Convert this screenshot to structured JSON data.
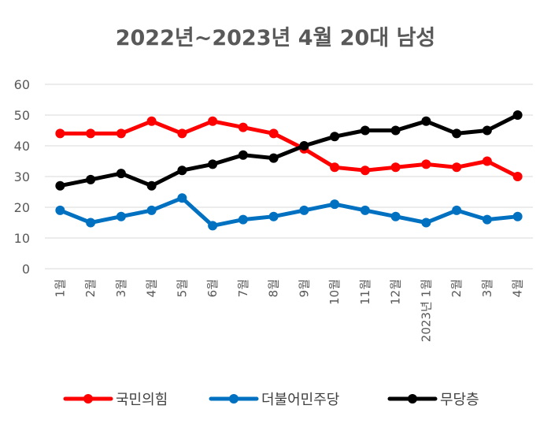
{
  "chart_data": {
    "type": "line",
    "title": "2022년~2023년 4월 20대 남성",
    "xlabel": "",
    "ylabel": "",
    "categories": [
      "1월",
      "2월",
      "3월",
      "4월",
      "5월",
      "6월",
      "7월",
      "8월",
      "9월",
      "10월",
      "11월",
      "12월",
      "2023년 1월",
      "2월",
      "3월",
      "4월"
    ],
    "ylim": [
      0,
      60
    ],
    "yticks": [
      0,
      10,
      20,
      30,
      40,
      50,
      60
    ],
    "grid": true,
    "legend": "bottom",
    "series": [
      {
        "name": "국민의힘",
        "color": "#ff0000",
        "values": [
          44,
          44,
          44,
          48,
          44,
          48,
          46,
          44,
          39,
          33,
          32,
          33,
          34,
          33,
          35,
          30
        ]
      },
      {
        "name": "더불어민주당",
        "color": "#0070c0",
        "values": [
          19,
          15,
          17,
          19,
          23,
          14,
          16,
          17,
          19,
          21,
          19,
          17,
          15,
          19,
          16,
          17
        ]
      },
      {
        "name": "무당층",
        "color": "#000000",
        "values": [
          27,
          29,
          31,
          27,
          32,
          34,
          37,
          36,
          40,
          43,
          45,
          45,
          48,
          44,
          45,
          50
        ]
      }
    ]
  }
}
